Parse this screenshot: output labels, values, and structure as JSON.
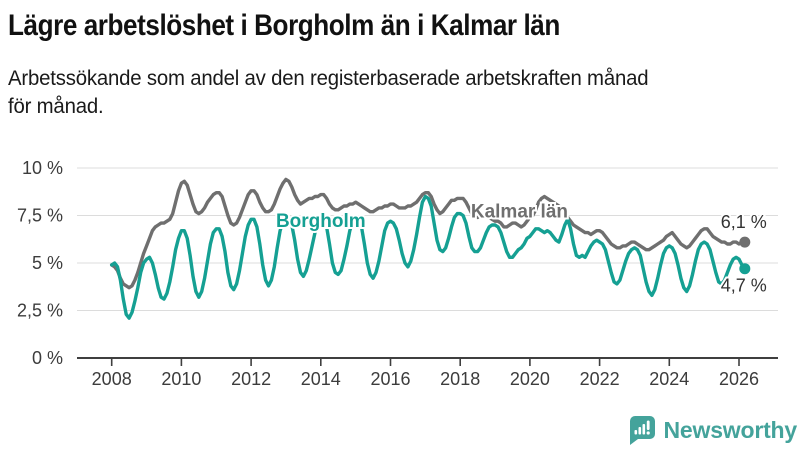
{
  "title": "Lägre arbetslöshet i Borgholm än i Kalmar län",
  "subtitle_lines": [
    "Arbetssökande som andel av den registerbaserade arbetskraften månad",
    "för månad."
  ],
  "branding": {
    "name": "Newsworthy",
    "color": "#44a39b"
  },
  "colors": {
    "teal": "#15a093",
    "gray": "#6f6f6f",
    "grid": "#dcdcdc",
    "axis": "#3f3f3f",
    "tick_text": "#3c3c3c",
    "end_label_text": "#333333"
  },
  "chart_data": {
    "type": "line",
    "title": "Lägre arbetslöshet i Borgholm än i Kalmar län",
    "xlabel": "",
    "ylabel": "Arbetssökande som andel av den registerbaserade arbetskraften",
    "x_unit": "month",
    "x_start_year": 2008,
    "x_end": "2026-03",
    "xlim": [
      2008,
      2026.25
    ],
    "ylim": [
      0,
      10
    ],
    "grid": true,
    "y_ticks": [
      0,
      2.5,
      5,
      7.5,
      10
    ],
    "y_tick_labels": [
      "0 %",
      "2,5 %",
      "5 %",
      "7,5 %",
      "10 %"
    ],
    "x_ticks": [
      2008,
      2010,
      2012,
      2014,
      2016,
      2018,
      2020,
      2022,
      2024,
      2026
    ],
    "x_tick_labels": [
      "2008",
      "2010",
      "2012",
      "2014",
      "2016",
      "2018",
      "2020",
      "2022",
      "2024",
      "2026"
    ],
    "series": [
      {
        "name": "Kalmar län",
        "color": "#6f6f6f",
        "end_label": "6,1 %",
        "end_label_position": "above",
        "label_anchor_year": 2019.7,
        "label_anchor_value": 7.4,
        "values": [
          4.9,
          4.8,
          4.6,
          4.2,
          3.9,
          3.8,
          3.7,
          3.8,
          4.1,
          4.5,
          5.0,
          5.5,
          5.9,
          6.3,
          6.7,
          6.9,
          7.0,
          7.1,
          7.1,
          7.2,
          7.3,
          7.6,
          8.2,
          8.8,
          9.2,
          9.3,
          9.1,
          8.6,
          8.1,
          7.7,
          7.6,
          7.7,
          7.9,
          8.2,
          8.4,
          8.6,
          8.7,
          8.7,
          8.5,
          8.0,
          7.5,
          7.1,
          7.0,
          7.1,
          7.4,
          7.8,
          8.2,
          8.6,
          8.8,
          8.8,
          8.6,
          8.2,
          7.9,
          7.7,
          7.7,
          7.8,
          8.1,
          8.5,
          8.9,
          9.2,
          9.4,
          9.3,
          9.0,
          8.6,
          8.3,
          8.1,
          8.2,
          8.3,
          8.4,
          8.4,
          8.5,
          8.5,
          8.6,
          8.6,
          8.4,
          8.1,
          7.9,
          7.8,
          7.8,
          7.9,
          8.0,
          8.0,
          8.1,
          8.1,
          8.2,
          8.1,
          8.0,
          7.9,
          7.8,
          7.7,
          7.7,
          7.8,
          7.9,
          7.9,
          8.0,
          8.0,
          8.1,
          8.1,
          8.0,
          7.9,
          7.9,
          7.9,
          8.0,
          8.0,
          8.1,
          8.2,
          8.4,
          8.6,
          8.7,
          8.7,
          8.5,
          8.1,
          7.8,
          7.6,
          7.7,
          7.9,
          8.1,
          8.3,
          8.3,
          8.4,
          8.4,
          8.4,
          8.2,
          7.9,
          7.6,
          7.4,
          7.4,
          7.5,
          7.5,
          7.5,
          7.4,
          7.3,
          7.2,
          7.2,
          7.1,
          6.9,
          6.9,
          7.0,
          7.1,
          7.1,
          7.0,
          6.9,
          7.0,
          7.2,
          7.4,
          7.5,
          7.8,
          8.2,
          8.4,
          8.5,
          8.4,
          8.3,
          8.2,
          8.1,
          8.0,
          7.9,
          7.6,
          7.4,
          7.2,
          7.0,
          6.9,
          6.8,
          6.7,
          6.6,
          6.6,
          6.5,
          6.6,
          6.7,
          6.7,
          6.6,
          6.4,
          6.2,
          6.0,
          5.9,
          5.8,
          5.8,
          5.9,
          5.9,
          6.0,
          6.1,
          6.1,
          6.0,
          5.9,
          5.8,
          5.7,
          5.7,
          5.8,
          5.9,
          6.0,
          6.1,
          6.2,
          6.4,
          6.5,
          6.6,
          6.4,
          6.2,
          6.0,
          5.9,
          5.8,
          5.9,
          6.1,
          6.3,
          6.5,
          6.7,
          6.8,
          6.8,
          6.6,
          6.4,
          6.3,
          6.2,
          6.1,
          6.1,
          6.0,
          6.0,
          6.1,
          6.1,
          6.0,
          6.1,
          6.1
        ]
      },
      {
        "name": "Borgholm",
        "color": "#15a093",
        "end_label": "4,7 %",
        "end_label_position": "below",
        "label_anchor_year": 2014.0,
        "label_anchor_value": 6.9,
        "values": [
          4.9,
          5.0,
          4.8,
          4.1,
          3.1,
          2.3,
          2.1,
          2.4,
          3.0,
          3.7,
          4.5,
          5.0,
          5.2,
          5.3,
          5.0,
          4.4,
          3.7,
          3.2,
          3.1,
          3.4,
          4.0,
          4.8,
          5.7,
          6.3,
          6.7,
          6.7,
          6.3,
          5.4,
          4.3,
          3.5,
          3.2,
          3.5,
          4.2,
          5.1,
          6.0,
          6.6,
          6.8,
          6.8,
          6.4,
          5.6,
          4.5,
          3.8,
          3.6,
          3.9,
          4.6,
          5.5,
          6.4,
          7.0,
          7.3,
          7.3,
          6.9,
          6.0,
          4.9,
          4.1,
          3.8,
          4.1,
          4.8,
          5.8,
          6.7,
          7.2,
          7.4,
          7.4,
          7.0,
          6.2,
          5.2,
          4.5,
          4.3,
          4.6,
          5.2,
          5.9,
          6.6,
          7.1,
          7.4,
          7.3,
          6.9,
          6.0,
          5.0,
          4.5,
          4.4,
          4.6,
          5.2,
          5.9,
          6.7,
          7.2,
          7.4,
          7.3,
          6.9,
          6.0,
          5.0,
          4.4,
          4.2,
          4.5,
          5.1,
          5.9,
          6.7,
          7.1,
          7.2,
          7.1,
          6.8,
          6.2,
          5.5,
          5.0,
          4.8,
          5.1,
          5.7,
          6.5,
          7.4,
          8.2,
          8.5,
          8.4,
          8.0,
          7.1,
          6.2,
          5.7,
          5.6,
          5.8,
          6.3,
          6.9,
          7.4,
          7.6,
          7.6,
          7.5,
          7.1,
          6.4,
          5.8,
          5.6,
          5.6,
          5.8,
          6.2,
          6.6,
          6.9,
          7.0,
          7.0,
          6.9,
          6.6,
          6.1,
          5.6,
          5.3,
          5.3,
          5.5,
          5.7,
          5.8,
          6.0,
          6.3,
          6.4,
          6.6,
          6.8,
          6.8,
          6.7,
          6.6,
          6.7,
          6.6,
          6.4,
          6.2,
          6.1,
          6.5,
          7.0,
          7.3,
          6.8,
          6.0,
          5.4,
          5.3,
          5.4,
          5.3,
          5.6,
          5.9,
          6.1,
          6.2,
          6.1,
          6.0,
          5.7,
          5.1,
          4.5,
          4.0,
          3.9,
          4.1,
          4.6,
          5.1,
          5.5,
          5.7,
          5.8,
          5.7,
          5.4,
          4.7,
          4.0,
          3.5,
          3.3,
          3.6,
          4.2,
          4.9,
          5.5,
          5.8,
          5.9,
          5.8,
          5.5,
          4.9,
          4.2,
          3.7,
          3.5,
          3.8,
          4.4,
          5.1,
          5.7,
          6.0,
          6.1,
          6.0,
          5.7,
          5.1,
          4.5,
          4.0,
          3.9,
          4.1,
          4.5,
          4.9,
          5.2,
          5.3,
          5.2,
          4.9,
          4.7
        ]
      }
    ]
  }
}
